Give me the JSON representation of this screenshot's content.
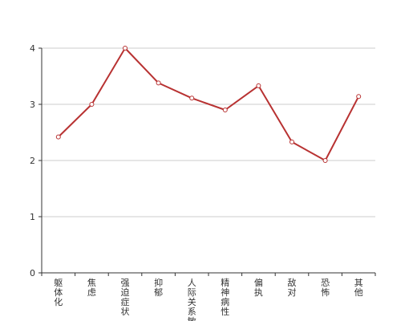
{
  "chart_data": {
    "type": "line",
    "title": "",
    "xlabel": "",
    "ylabel": "",
    "categories": [
      "躯体化",
      "焦虑",
      "强迫症状",
      "抑郁",
      "人际关系敏感",
      "精神病性",
      "偏执",
      "敌对",
      "恐怖",
      "其他"
    ],
    "series": [
      {
        "values": [
          2.42,
          3.0,
          4.0,
          3.38,
          3.11,
          2.9,
          3.33,
          2.33,
          2.0,
          3.14
        ]
      }
    ],
    "ylim": [
      0,
      4
    ],
    "yticks": [
      "0",
      "1",
      "2",
      "3",
      "4"
    ],
    "grid": true,
    "legend": "none"
  },
  "colors": {
    "line": "#b83232",
    "marker_fill": "#ffffff",
    "grid": "#cccccc",
    "axis": "#333333"
  }
}
